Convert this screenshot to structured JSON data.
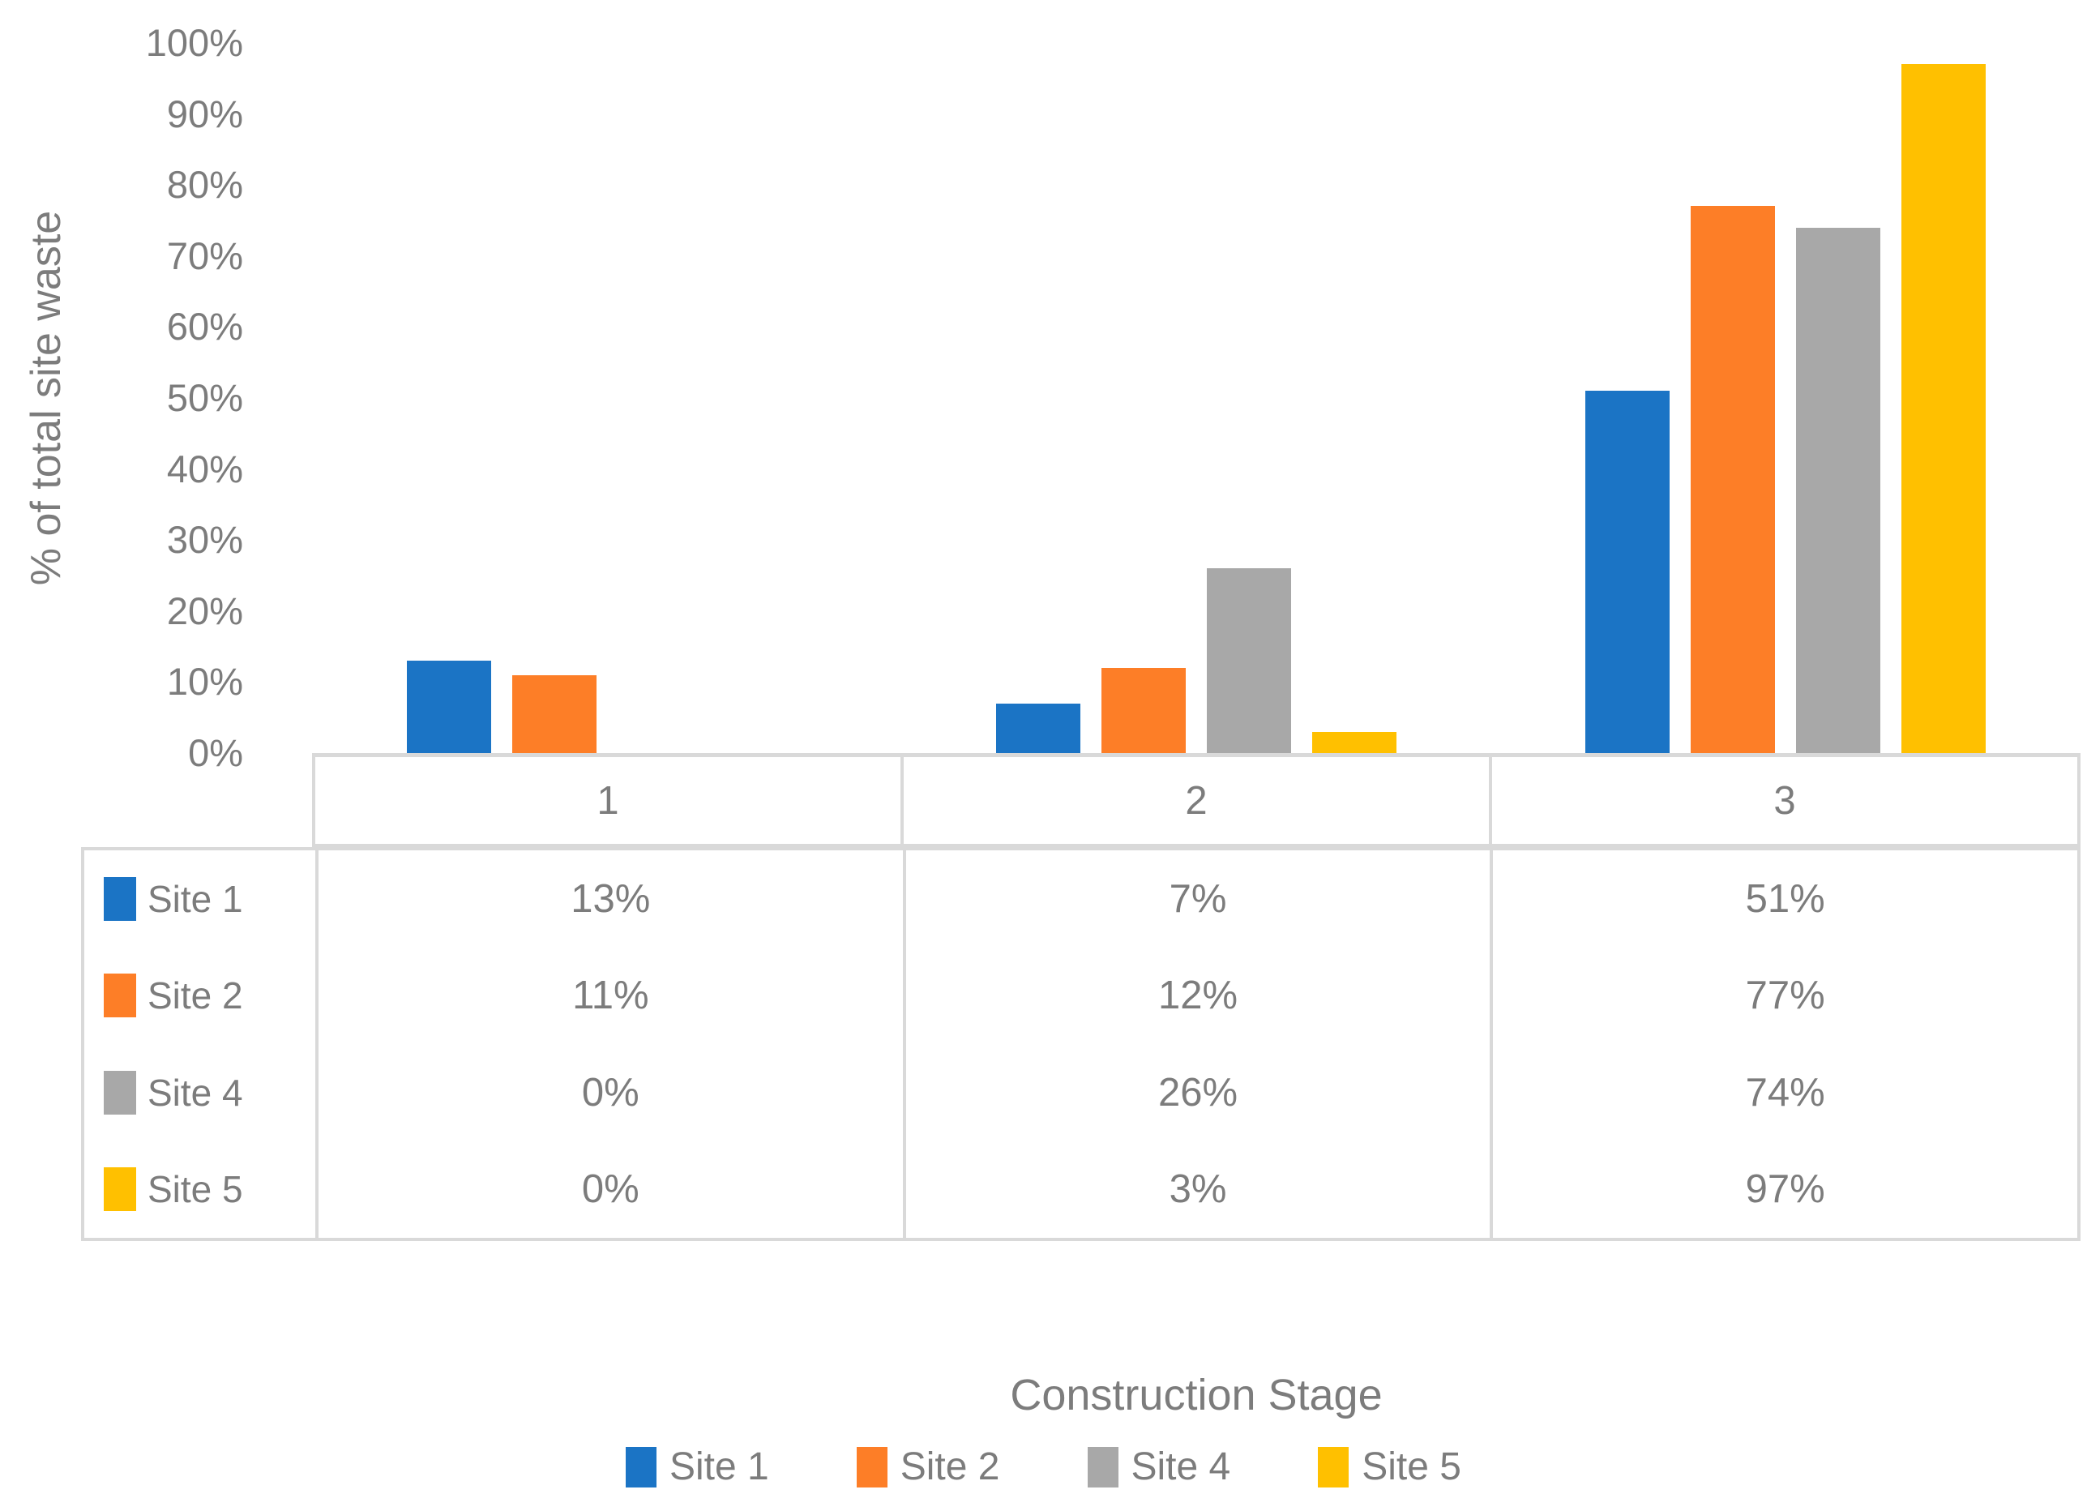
{
  "chart_data": {
    "type": "bar",
    "title": "",
    "xlabel": "Construction Stage",
    "ylabel": "% of total site waste",
    "categories": [
      "1",
      "2",
      "3"
    ],
    "series": [
      {
        "name": "Site 1",
        "color": "#1B74C5",
        "values": [
          13,
          7,
          51
        ]
      },
      {
        "name": "Site 2",
        "color": "#FD7E27",
        "values": [
          11,
          12,
          77
        ]
      },
      {
        "name": "Site 4",
        "color": "#A8A8A8",
        "values": [
          0,
          26,
          74
        ]
      },
      {
        "name": "Site 5",
        "color": "#FFC000",
        "values": [
          0,
          3,
          97
        ]
      }
    ],
    "y_ticks": [
      "0%",
      "10%",
      "20%",
      "30%",
      "40%",
      "50%",
      "60%",
      "70%",
      "80%",
      "90%",
      "100%"
    ],
    "ylim": [
      0,
      100
    ],
    "grid": false,
    "legend_position": "bottom",
    "legend_labels": [
      "Site 1",
      "Site 2",
      "Site 4",
      "Site 5"
    ],
    "data_table": {
      "column_headers": [
        "1",
        "2",
        "3"
      ],
      "row_headers": [
        "Site 1",
        "Site 2",
        "Site 4",
        "Site 5"
      ],
      "rows": [
        [
          "13%",
          "7%",
          "51%"
        ],
        [
          "11%",
          "12%",
          "77%"
        ],
        [
          "0%",
          "26%",
          "74%"
        ],
        [
          "0%",
          "3%",
          "97%"
        ]
      ]
    }
  },
  "colors": {
    "text": "#7C7C7C",
    "border": "#D9D9D9",
    "background": "#FFFFFF"
  }
}
